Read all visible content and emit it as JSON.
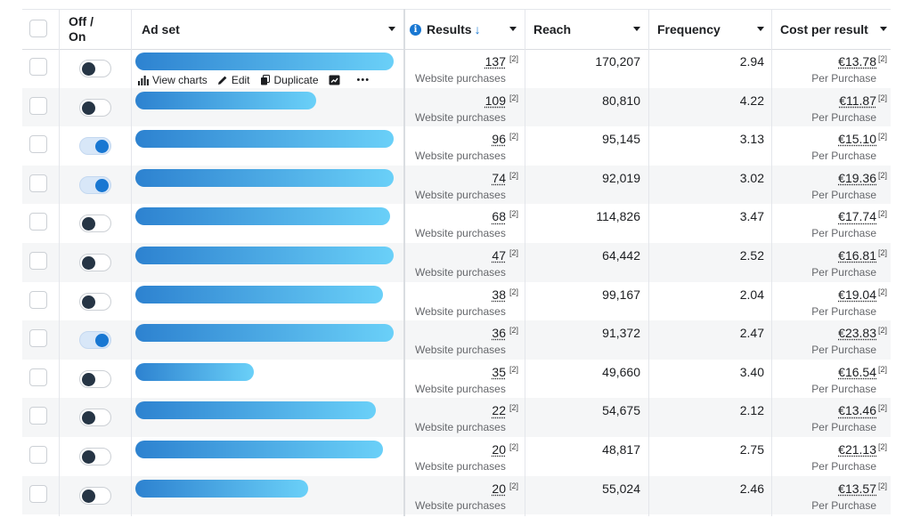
{
  "header": {
    "toggle_col": "Off / On",
    "adset_col": "Ad set",
    "results_col": "Results",
    "results_sort_icon": "arrow-down",
    "reach_col": "Reach",
    "frequency_col": "Frequency",
    "cost_col": "Cost per result"
  },
  "row_actions": {
    "view_charts": "View charts",
    "edit": "Edit",
    "duplicate": "Duplicate",
    "more": "•••"
  },
  "colors": {
    "accent": "#1877d2",
    "bar_start": "#2d82d0",
    "bar_end": "#6ad0f8"
  },
  "rows": [
    {
      "toggle": "off",
      "name_bar_fill": 1.0,
      "results": "137",
      "results_note": "[2]",
      "results_label": "Website purchases",
      "reach": "170,207",
      "frequency": "2.94",
      "cost": "€13.78",
      "cost_note": "[2]",
      "cost_label": "Per Purchase"
    },
    {
      "toggle": "off",
      "name_bar_fill": 0.7,
      "results": "109",
      "results_note": "[2]",
      "results_label": "Website purchases",
      "reach": "80,810",
      "frequency": "4.22",
      "cost": "€11.87",
      "cost_note": "[2]",
      "cost_label": "Per Purchase"
    },
    {
      "toggle": "on",
      "name_bar_fill": 1.0,
      "results": "96",
      "results_note": "[2]",
      "results_label": "Website purchases",
      "reach": "95,145",
      "frequency": "3.13",
      "cost": "€15.10",
      "cost_note": "[2]",
      "cost_label": "Per Purchase"
    },
    {
      "toggle": "on",
      "name_bar_fill": 1.0,
      "results": "74",
      "results_note": "[2]",
      "results_label": "Website purchases",
      "reach": "92,019",
      "frequency": "3.02",
      "cost": "€19.36",
      "cost_note": "[2]",
      "cost_label": "Per Purchase"
    },
    {
      "toggle": "off",
      "name_bar_fill": 0.985,
      "results": "68",
      "results_note": "[2]",
      "results_label": "Website purchases",
      "reach": "114,826",
      "frequency": "3.47",
      "cost": "€17.74",
      "cost_note": "[2]",
      "cost_label": "Per Purchase"
    },
    {
      "toggle": "off",
      "name_bar_fill": 1.0,
      "results": "47",
      "results_note": "[2]",
      "results_label": "Website purchases",
      "reach": "64,442",
      "frequency": "2.52",
      "cost": "€16.81",
      "cost_note": "[2]",
      "cost_label": "Per Purchase"
    },
    {
      "toggle": "off",
      "name_bar_fill": 0.96,
      "results": "38",
      "results_note": "[2]",
      "results_label": "Website purchases",
      "reach": "99,167",
      "frequency": "2.04",
      "cost": "€19.04",
      "cost_note": "[2]",
      "cost_label": "Per Purchase"
    },
    {
      "toggle": "on",
      "name_bar_fill": 1.0,
      "results": "36",
      "results_note": "[2]",
      "results_label": "Website purchases",
      "reach": "91,372",
      "frequency": "2.47",
      "cost": "€23.83",
      "cost_note": "[2]",
      "cost_label": "Per Purchase"
    },
    {
      "toggle": "off",
      "name_bar_fill": 0.46,
      "results": "35",
      "results_note": "[2]",
      "results_label": "Website purchases",
      "reach": "49,660",
      "frequency": "3.40",
      "cost": "€16.54",
      "cost_note": "[2]",
      "cost_label": "Per Purchase"
    },
    {
      "toggle": "off",
      "name_bar_fill": 0.93,
      "results": "22",
      "results_note": "[2]",
      "results_label": "Website purchases",
      "reach": "54,675",
      "frequency": "2.12",
      "cost": "€13.46",
      "cost_note": "[2]",
      "cost_label": "Per Purchase"
    },
    {
      "toggle": "off",
      "name_bar_fill": 0.96,
      "results": "20",
      "results_note": "[2]",
      "results_label": "Website purchases",
      "reach": "48,817",
      "frequency": "2.75",
      "cost": "€21.13",
      "cost_note": "[2]",
      "cost_label": "Per Purchase"
    },
    {
      "toggle": "off",
      "name_bar_fill": 0.67,
      "results": "20",
      "results_note": "[2]",
      "results_label": "Website purchases",
      "reach": "55,024",
      "frequency": "2.46",
      "cost": "€13.57",
      "cost_note": "[2]",
      "cost_label": "Per Purchase"
    }
  ]
}
